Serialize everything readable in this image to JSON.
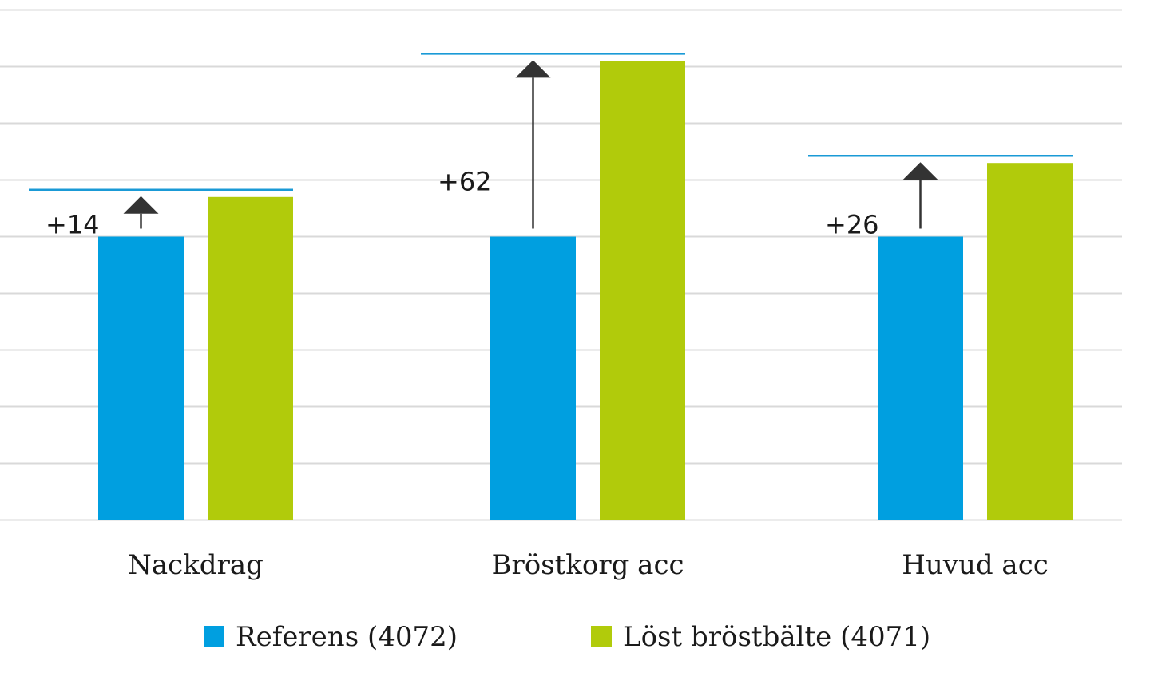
{
  "chart_data": {
    "type": "bar",
    "title": "",
    "xlabel": "",
    "ylabel": "",
    "categories": [
      "Nackdrag",
      "Bröstkorg acc",
      "Huvud acc"
    ],
    "series": [
      {
        "name": "Referens (4072)",
        "color": "#009fe0",
        "values": [
          100,
          100,
          100
        ]
      },
      {
        "name": "Löst bröstbälte (4071)",
        "color": "#b1cb0b",
        "values": [
          114,
          162,
          126
        ]
      }
    ],
    "differences": [
      "+14",
      "+62",
      "+26"
    ],
    "ylim": [
      0,
      200
    ],
    "grid": true,
    "legend_position": "bottom",
    "colors": {
      "reference_line": "#1a9ad6",
      "arrow": "#333333",
      "grid": "#d9d9d9"
    }
  }
}
